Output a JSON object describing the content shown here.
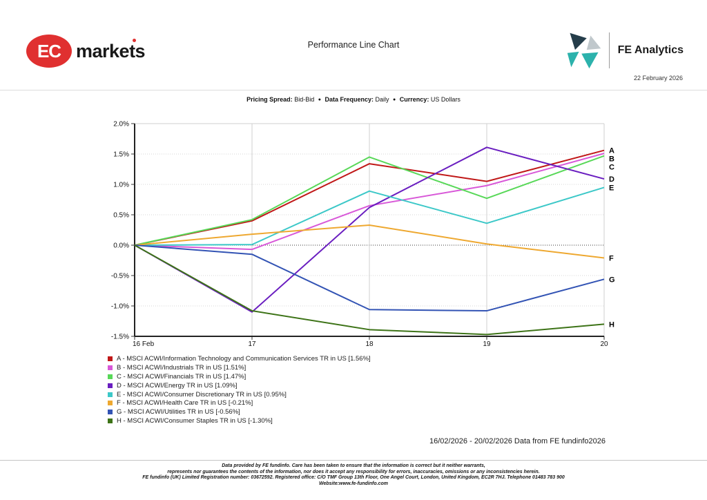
{
  "header": {
    "brand_badge": "EC",
    "brand_word": "markets",
    "title": "Performance Line Chart",
    "fe_name": "FE Analytics",
    "date": "22 February 2026"
  },
  "subtitle": {
    "pricing_label": "Pricing Spread:",
    "pricing_value": "Bid-Bid",
    "bullet": "●",
    "frequency_label": "Data Frequency:",
    "frequency_value": "Daily",
    "currency_label": "Currency:",
    "currency_value": "US Dollars"
  },
  "chart_data": {
    "type": "line",
    "title": "Performance Line Chart",
    "x_labels": [
      "16 Feb",
      "17",
      "18",
      "19",
      "20"
    ],
    "ylim": [
      -1.5,
      2.0
    ],
    "y_ticks": [
      {
        "label": "2.0%",
        "value": 2.0
      },
      {
        "label": "1.5%",
        "value": 1.5
      },
      {
        "label": "1.0%",
        "value": 1.0
      },
      {
        "label": "0.5%",
        "value": 0.5
      },
      {
        "label": "0.0%",
        "value": 0.0
      },
      {
        "label": "-0.5%",
        "value": -0.5
      },
      {
        "label": "-1.0%",
        "value": -1.0
      },
      {
        "label": "-1.5%",
        "value": -1.5
      }
    ],
    "zero_line_value": 0.0,
    "grid": true,
    "legend_position": "bottom-left",
    "series": [
      {
        "id": "A",
        "color": "#c01818",
        "values": [
          0,
          0.4,
          1.34,
          1.05,
          1.56
        ],
        "legend_label": "A - MSCI ACWI/Information Technology and Communication Services TR in US [1.56%]"
      },
      {
        "id": "B",
        "color": "#d858d8",
        "values": [
          0,
          -0.07,
          0.65,
          0.98,
          1.51
        ],
        "legend_label": "B - MSCI ACWI/Industrials TR in US [1.51%]"
      },
      {
        "id": "C",
        "color": "#58d858",
        "values": [
          0,
          0.42,
          1.45,
          0.77,
          1.47
        ],
        "legend_label": "C - MSCI ACWI/Financials TR in US [1.47%]"
      },
      {
        "id": "D",
        "color": "#6a1ec0",
        "values": [
          0,
          -1.1,
          0.62,
          1.61,
          1.09
        ],
        "legend_label": "D - MSCI ACWI/Energy TR in US [1.09%]"
      },
      {
        "id": "E",
        "color": "#3cc8c8",
        "values": [
          0,
          0.01,
          0.89,
          0.36,
          0.95
        ],
        "legend_label": "E - MSCI ACWI/Consumer Discretionary TR in US [0.95%]"
      },
      {
        "id": "F",
        "color": "#eea830",
        "values": [
          0,
          0.18,
          0.33,
          0.02,
          -0.21
        ],
        "legend_label": "F - MSCI ACWI/Health Care TR in US [-0.21%]"
      },
      {
        "id": "G",
        "color": "#3253b4",
        "values": [
          0,
          -0.15,
          -1.06,
          -1.08,
          -0.56
        ],
        "legend_label": "G - MSCI ACWI/Utilities TR in US [-0.56%]"
      },
      {
        "id": "H",
        "color": "#3d7317",
        "values": [
          0,
          -1.08,
          -1.39,
          -1.47,
          -1.3
        ],
        "legend_label": "H - MSCI ACWI/Consumer Staples TR in US [-1.30%]"
      }
    ]
  },
  "range_note": "16/02/2026 - 20/02/2026 Data from FE fundinfo2026",
  "footer": {
    "lines": [
      "Data provided by FE fundinfo. Care has been taken to ensure that the information is correct but it neither warrants,",
      "represents nor guarantees the contents of the information, nor does it accept any responsibility for errors, inaccuracies, omissions or any inconsistencies herein.",
      "FE fundinfo (UK) Limited Registration number: 03672592. Registered office: C/O TMF Group 13th Floor, One Angel Court, London, United Kingdom, EC2R 7HJ. Telephone 01483 783 900",
      "Website:www.fe-fundinfo.com"
    ]
  }
}
